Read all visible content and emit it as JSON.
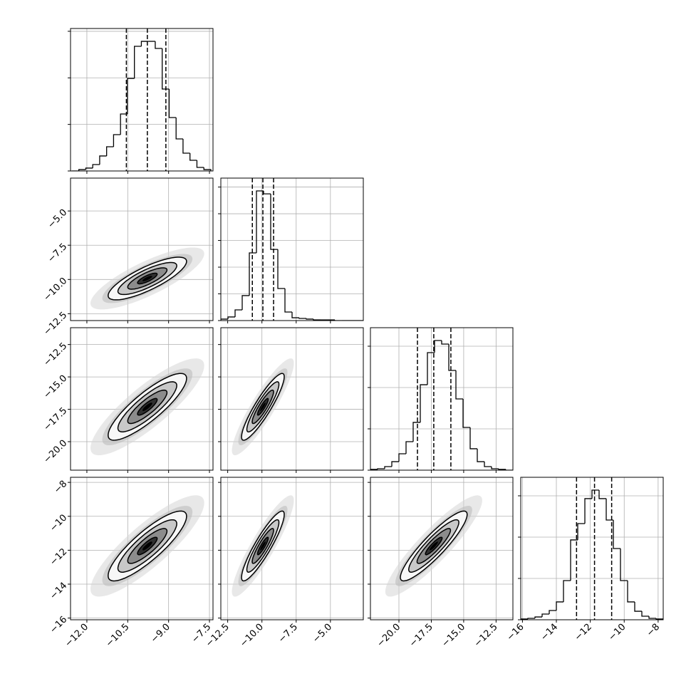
{
  "chart_data": {
    "type": "corner",
    "grid": true,
    "contour_sigmas": [
      0.5,
      1,
      1.5,
      2
    ],
    "parameters": [
      {
        "lim": [
          -12.6,
          -7.37
        ],
        "ticks": [
          {
            "value": -12,
            "label": "−12.0"
          },
          {
            "value": -10.5,
            "label": "−10.5"
          },
          {
            "value": -9,
            "label": "−9.0"
          },
          {
            "value": -7.5,
            "label": "−7.5"
          }
        ],
        "quantiles": [
          -10.55,
          -9.78,
          -9.1
        ],
        "std": 0.72,
        "bins": [
          -12.55,
          -12.295,
          -12.04,
          -11.785,
          -11.53,
          -11.275,
          -11.02,
          -10.765,
          -10.51,
          -10.255,
          -10.0,
          -9.745,
          -9.49,
          -9.235,
          -8.98,
          -8.725,
          -8.47,
          -8.215,
          -7.96,
          -7.705,
          -7.45
        ],
        "counts": [
          0,
          15,
          31,
          69,
          161,
          260,
          390,
          612,
          994,
          1339,
          1392,
          1392,
          1316,
          880,
          574,
          344,
          191,
          115,
          38,
          15
        ],
        "count_lim": [
          0,
          1530
        ],
        "count_ticks": [
          0,
          500,
          1000,
          1500
        ]
      },
      {
        "lim": [
          -13.0,
          -2.6
        ],
        "ticks": [
          {
            "value": -12.5,
            "label": "−12.5"
          },
          {
            "value": -10,
            "label": "−10.0"
          },
          {
            "value": -7.5,
            "label": "−7.5"
          },
          {
            "value": -5,
            "label": "−5.0"
          }
        ],
        "quantiles": [
          -10.7,
          -9.93,
          -9.15
        ],
        "std": 0.78,
        "bins": [
          -13.0,
          -12.48,
          -11.96,
          -11.44,
          -10.92,
          -10.4,
          -9.88,
          -9.36,
          -8.84,
          -8.32,
          -7.8,
          -7.28,
          -6.76,
          -6.24,
          -5.72,
          -5.2,
          -4.68,
          -4.16,
          -3.64,
          -3.12,
          -2.6
        ],
        "counts": [
          11,
          27,
          80,
          187,
          507,
          971,
          949,
          533,
          240,
          64,
          21,
          16,
          11,
          5,
          5,
          5,
          0,
          0,
          0,
          0
        ],
        "count_lim": [
          0,
          1067
        ],
        "count_ticks": [
          0,
          200,
          400,
          600,
          800,
          1000
        ]
      },
      {
        "lim": [
          -22.2,
          -11.2
        ],
        "ticks": [
          {
            "value": -20,
            "label": "−20.0"
          },
          {
            "value": -17.5,
            "label": "−17.5"
          },
          {
            "value": -15,
            "label": "−15.0"
          },
          {
            "value": -12.5,
            "label": "−12.5"
          }
        ],
        "quantiles": [
          -18.57,
          -17.31,
          -15.99
        ],
        "std": 1.29,
        "bins": [
          -22.2,
          -21.65,
          -21.1,
          -20.55,
          -20.0,
          -19.45,
          -18.9,
          -18.35,
          -17.8,
          -17.25,
          -16.7,
          -16.15,
          -15.6,
          -15.05,
          -14.5,
          -13.95,
          -13.4,
          -12.85,
          -12.3,
          -11.75,
          -11.2
        ],
        "counts": [
          9,
          17,
          43,
          103,
          198,
          345,
          578,
          1034,
          1422,
          1569,
          1526,
          1207,
          862,
          517,
          259,
          103,
          43,
          17,
          9,
          0
        ],
        "count_lim": [
          0,
          1724
        ],
        "count_ticks": [
          0,
          500,
          1000,
          1500
        ]
      },
      {
        "lim": [
          -16.1,
          -7.7
        ],
        "ticks": [
          {
            "value": -16,
            "label": "−16"
          },
          {
            "value": -14,
            "label": "−14"
          },
          {
            "value": -12,
            "label": "−12"
          },
          {
            "value": -10,
            "label": "−10"
          },
          {
            "value": -8,
            "label": "−8"
          }
        ],
        "quantiles": [
          -12.81,
          -11.75,
          -10.74
        ],
        "std": 1.03,
        "bins": [
          -16.1,
          -15.68,
          -15.26,
          -14.84,
          -14.42,
          -14.0,
          -13.58,
          -13.16,
          -12.74,
          -12.32,
          -11.9,
          -11.48,
          -11.06,
          -10.64,
          -10.22,
          -9.8,
          -9.38,
          -8.96,
          -8.54,
          -8.12,
          -7.7
        ],
        "counts": [
          9,
          17,
          34,
          69,
          112,
          216,
          474,
          966,
          1164,
          1466,
          1569,
          1466,
          1207,
          862,
          474,
          216,
          103,
          43,
          17,
          9
        ],
        "count_lim": [
          0,
          1724
        ],
        "count_ticks": [
          0,
          500,
          1000,
          1500
        ]
      }
    ],
    "pairs": [
      {
        "x": 0,
        "y": 1,
        "rho": 0.8
      },
      {
        "x": 0,
        "y": 2,
        "rho": 0.85
      },
      {
        "x": 1,
        "y": 2,
        "rho": 0.9
      },
      {
        "x": 0,
        "y": 3,
        "rho": 0.85
      },
      {
        "x": 1,
        "y": 3,
        "rho": 0.9
      },
      {
        "x": 2,
        "y": 3,
        "rho": 0.9
      }
    ]
  }
}
